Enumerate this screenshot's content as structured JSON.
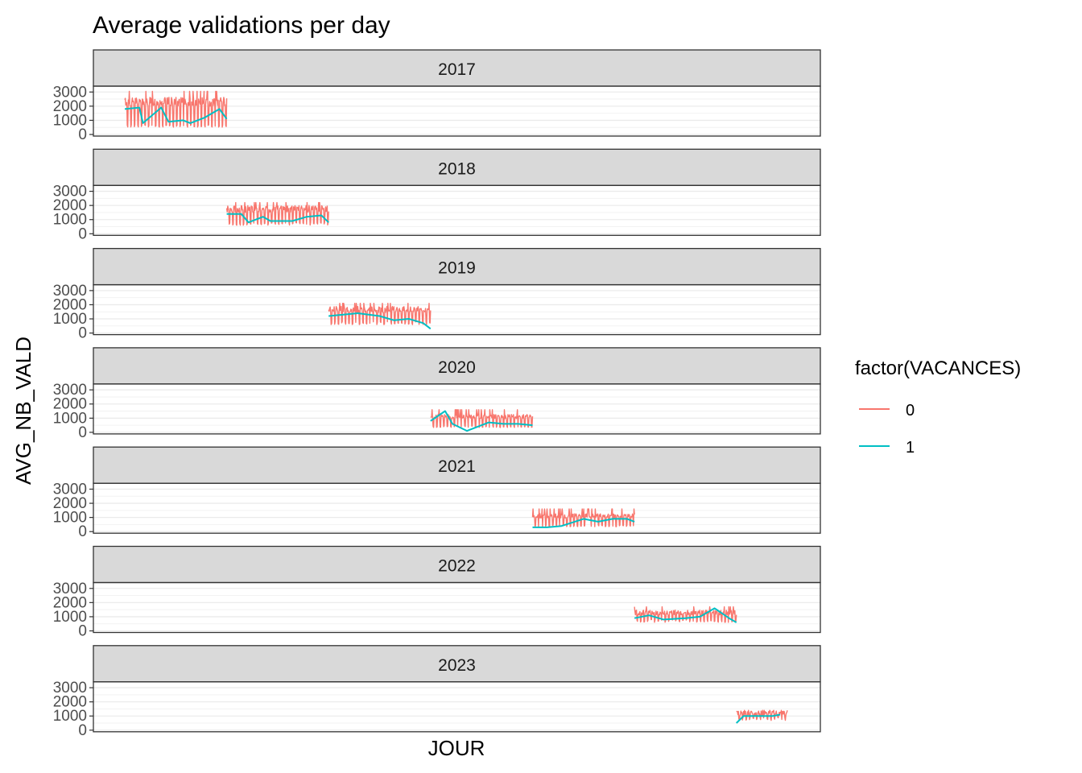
{
  "chart_data": {
    "type": "line",
    "title": "Average validations per day",
    "xlabel": "JOUR",
    "ylabel": "AVG_NB_VALD",
    "ylim": [
      0,
      3300
    ],
    "yticks": [
      0,
      1000,
      2000,
      3000
    ],
    "grid": true,
    "legend": {
      "title": "factor(VACANCES)",
      "placement": "right",
      "entries": [
        {
          "label": "0",
          "color": "#F8766D"
        },
        {
          "label": "1",
          "color": "#00BFC4"
        }
      ]
    },
    "facets": [
      {
        "label": "2017",
        "x_range": [
          0.0,
          0.14
        ],
        "vac0": {
          "low": 600,
          "high": 2500,
          "peak": 3050
        },
        "vac1": [
          [
            0.0,
            1800
          ],
          [
            0.02,
            1900
          ],
          [
            0.025,
            800
          ],
          [
            0.05,
            1900
          ],
          [
            0.06,
            900
          ],
          [
            0.08,
            1000
          ],
          [
            0.09,
            800
          ],
          [
            0.11,
            1200
          ],
          [
            0.13,
            1800
          ],
          [
            0.14,
            1100
          ]
        ]
      },
      {
        "label": "2018",
        "x_range": [
          0.14,
          0.28
        ],
        "vac0": {
          "low": 700,
          "high": 1900,
          "peak": 2200
        },
        "vac1": [
          [
            0.14,
            1400
          ],
          [
            0.16,
            1400
          ],
          [
            0.17,
            800
          ],
          [
            0.19,
            1200
          ],
          [
            0.2,
            900
          ],
          [
            0.23,
            900
          ],
          [
            0.25,
            1200
          ],
          [
            0.27,
            1300
          ],
          [
            0.28,
            800
          ]
        ]
      },
      {
        "label": "2019",
        "x_range": [
          0.28,
          0.42
        ],
        "vac0": {
          "low": 700,
          "high": 1800,
          "peak": 2100
        },
        "vac1": [
          [
            0.28,
            1200
          ],
          [
            0.3,
            1300
          ],
          [
            0.32,
            1400
          ],
          [
            0.35,
            1200
          ],
          [
            0.37,
            900
          ],
          [
            0.39,
            1000
          ],
          [
            0.41,
            700
          ],
          [
            0.42,
            300
          ]
        ]
      },
      {
        "label": "2020",
        "x_range": [
          0.42,
          0.56
        ],
        "vac0": {
          "low": 400,
          "high": 1200,
          "peak": 1600
        },
        "vac1": [
          [
            0.42,
            800
          ],
          [
            0.44,
            1500
          ],
          [
            0.45,
            600
          ],
          [
            0.47,
            100
          ],
          [
            0.5,
            700
          ],
          [
            0.52,
            600
          ],
          [
            0.54,
            600
          ],
          [
            0.56,
            500
          ]
        ]
      },
      {
        "label": "2021",
        "x_range": [
          0.56,
          0.7
        ],
        "vac0": {
          "low": 400,
          "high": 1200,
          "peak": 1600
        },
        "vac1": [
          [
            0.56,
            300
          ],
          [
            0.58,
            300
          ],
          [
            0.6,
            400
          ],
          [
            0.63,
            900
          ],
          [
            0.65,
            700
          ],
          [
            0.67,
            900
          ],
          [
            0.69,
            900
          ],
          [
            0.7,
            700
          ]
        ]
      },
      {
        "label": "2022",
        "x_range": [
          0.7,
          0.84
        ],
        "vac0": {
          "low": 700,
          "high": 1400,
          "peak": 1700
        },
        "vac1": [
          [
            0.7,
            900
          ],
          [
            0.72,
            1100
          ],
          [
            0.74,
            800
          ],
          [
            0.77,
            900
          ],
          [
            0.79,
            1000
          ],
          [
            0.81,
            1600
          ],
          [
            0.83,
            900
          ],
          [
            0.84,
            600
          ]
        ]
      },
      {
        "label": "2023",
        "x_range": [
          0.84,
          0.91
        ],
        "vac0": {
          "low": 800,
          "high": 1300,
          "peak": 1400
        },
        "vac1": [
          [
            0.84,
            500
          ],
          [
            0.85,
            1000
          ],
          [
            0.87,
            1000
          ],
          [
            0.89,
            1000
          ],
          [
            0.9,
            1100
          ]
        ]
      }
    ]
  }
}
